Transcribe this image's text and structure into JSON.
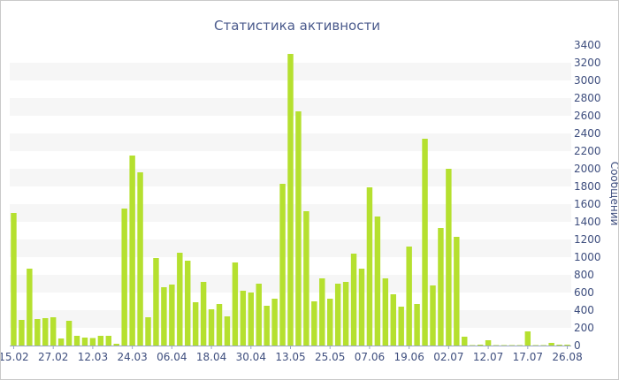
{
  "chart_data": {
    "type": "bar",
    "title": "Статистика активности",
    "ylabel": "Сообщений",
    "xlabel": "",
    "ylim": [
      0,
      3400
    ],
    "y_ticks": [
      0,
      200,
      400,
      600,
      800,
      1000,
      1200,
      1400,
      1600,
      1800,
      2000,
      2200,
      2400,
      2600,
      2800,
      3000,
      3200,
      3400
    ],
    "x_tick_labels": [
      "15.02",
      "27.02",
      "12.03",
      "24.03",
      "06.04",
      "18.04",
      "30.04",
      "13.05",
      "25.05",
      "07.06",
      "19.06",
      "02.07",
      "12.07",
      "17.07",
      "26.08"
    ],
    "x_tick_positions": [
      0,
      5,
      10,
      15,
      20,
      25,
      30,
      35,
      40,
      45,
      50,
      55,
      60,
      65,
      70
    ],
    "grid": "alternating-bands",
    "bar_color": "#b5e02f",
    "band_color": "#f6f6f6",
    "values": [
      1500,
      290,
      870,
      300,
      310,
      320,
      80,
      280,
      110,
      90,
      85,
      110,
      110,
      20,
      1550,
      2150,
      1960,
      320,
      990,
      660,
      690,
      1050,
      960,
      490,
      720,
      410,
      470,
      330,
      940,
      620,
      600,
      700,
      450,
      530,
      1830,
      3300,
      2650,
      1520,
      500,
      760,
      530,
      700,
      720,
      1040,
      870,
      1790,
      1460,
      760,
      580,
      440,
      1120,
      470,
      2340,
      680,
      1330,
      2000,
      1230,
      100,
      5,
      10,
      60,
      5,
      5,
      5,
      5,
      160,
      5,
      5,
      30,
      10,
      10
    ]
  }
}
